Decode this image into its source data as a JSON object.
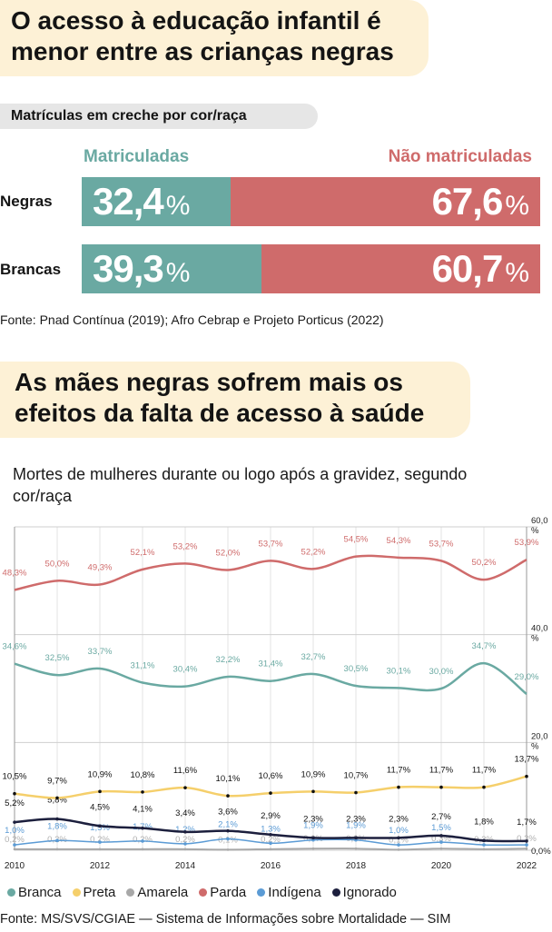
{
  "section1": {
    "headline": "O acesso à educação infantil é menor entre as crianças negras",
    "subtitle": "Matrículas em creche por cor/raça",
    "col_enrolled": "Matriculadas",
    "col_not_enrolled": "Não matriculadas",
    "pct_sign": "%",
    "rows": [
      {
        "label": "Negras",
        "enrolled": "32,4",
        "not_enrolled": "67,6",
        "enrolled_value": 32.4
      },
      {
        "label": "Brancas",
        "enrolled": "39,3",
        "not_enrolled": "60,7",
        "enrolled_value": 39.3
      }
    ],
    "source": "Fonte: Pnad Contínua (2019); Afro Cebrap e Projeto Porticus (2022)"
  },
  "section2": {
    "headline": "As mães negras sofrem mais os efeitos da falta de acesso à saúde",
    "source": "Fonte: MS/SVS/CGIAE — Sistema de Informações sobre Mortalidade — SIM"
  },
  "colors": {
    "teal": "#6aa9a2",
    "red": "#cf6b6b",
    "yellow": "#f5cf6b",
    "gray": "#a8a8a8",
    "blue": "#5b9bd5",
    "navy": "#1c1f3d"
  },
  "chart_data": {
    "type": "line",
    "title": "Mortes de mulheres durante ou logo após a gravidez, segundo cor/raça",
    "x": [
      2010,
      2011,
      2012,
      2013,
      2014,
      2015,
      2016,
      2017,
      2018,
      2019,
      2020,
      2021,
      2022
    ],
    "x_ticks": [
      "2010",
      "2012",
      "2014",
      "2016",
      "2018",
      "2020",
      "2022"
    ],
    "y_ticks": [
      {
        "value": 60,
        "label": "60,0 %"
      },
      {
        "value": 40,
        "label": "40,0 %"
      },
      {
        "value": 20,
        "label": "20,0 %"
      },
      {
        "value": 0,
        "label": "0,0%"
      }
    ],
    "ylim": [
      0,
      60
    ],
    "series": [
      {
        "name": "Parda",
        "color": "#cf6b6b",
        "values": [
          48.3,
          50.0,
          49.3,
          52.1,
          53.2,
          52.0,
          53.7,
          52.2,
          54.5,
          54.3,
          53.7,
          50.2,
          53.9
        ],
        "labels": [
          "48,3%",
          "50,0%",
          "49,3%",
          "52,1%",
          "53,2%",
          "52,0%",
          "53,7%",
          "52,2%",
          "54,5%",
          "54,3%",
          "53,7%",
          "50,2%",
          "53,9%"
        ]
      },
      {
        "name": "Branca",
        "color": "#6aa9a2",
        "values": [
          34.6,
          32.5,
          33.7,
          31.1,
          30.4,
          32.2,
          31.4,
          32.7,
          30.5,
          30.1,
          30.0,
          34.7,
          29.0
        ],
        "labels": [
          "34,6%",
          "32,5%",
          "33,7%",
          "31,1%",
          "30,4%",
          "32,2%",
          "31,4%",
          "32,7%",
          "30,5%",
          "30,1%",
          "30,0%",
          "34,7%",
          "29,0%"
        ]
      },
      {
        "name": "Preta",
        "color": "#f5cf6b",
        "values": [
          10.5,
          9.7,
          10.9,
          10.8,
          11.6,
          10.1,
          10.6,
          10.9,
          10.7,
          11.7,
          11.7,
          11.7,
          13.7
        ],
        "labels": [
          "10,5%",
          "9,7%",
          "10,9%",
          "10,8%",
          "11,6%",
          "10,1%",
          "10,6%",
          "10,9%",
          "10,7%",
          "11,7%",
          "11,7%",
          "11,7%",
          "13,7%"
        ]
      },
      {
        "name": "Ignorado",
        "color": "#1c1f3d",
        "values": [
          5.2,
          5.8,
          4.5,
          4.1,
          3.4,
          3.6,
          2.9,
          2.3,
          2.3,
          2.3,
          2.7,
          1.8,
          1.7
        ],
        "labels": [
          "5,2%",
          "5,8%",
          "4,5%",
          "4,1%",
          "3,4%",
          "3,6%",
          "2,9%",
          "2,3%",
          "2,3%",
          "2,3%",
          "2,7%",
          "1,8%",
          "1,7%"
        ]
      },
      {
        "name": "Indígena",
        "color": "#5b9bd5",
        "values": [
          1.0,
          1.8,
          1.5,
          1.7,
          1.2,
          2.1,
          1.3,
          1.9,
          1.9,
          1.0,
          1.5,
          1.0,
          1.0
        ],
        "labels": [
          "1,0%",
          "1,8%",
          "1,5%",
          "1,7%",
          "1,2%",
          "2,1%",
          "1,3%",
          "1,9%",
          "1,9%",
          "1,0%",
          "1,5%",
          "",
          ""
        ]
      },
      {
        "name": "Amarela",
        "color": "#a8a8a8",
        "values": [
          0.2,
          0.2,
          0.2,
          0.2,
          0.2,
          0.1,
          0.2,
          0.3,
          0.3,
          0.1,
          0.3,
          0.2,
          0.3
        ],
        "labels": [
          "0,2%",
          "0,2%",
          "0,2%",
          "0,2%",
          "0,2%",
          "0,1%",
          "0,2%",
          "0,3%",
          "0,3%",
          "0,1%",
          "0,3%",
          "0,2%",
          "0,3%"
        ]
      }
    ],
    "legend": [
      {
        "name": "Branca",
        "color": "#6aa9a2"
      },
      {
        "name": "Preta",
        "color": "#f5cf6b"
      },
      {
        "name": "Amarela",
        "color": "#a8a8a8"
      },
      {
        "name": "Parda",
        "color": "#cf6b6b"
      },
      {
        "name": "Indígena",
        "color": "#5b9bd5"
      },
      {
        "name": "Ignorado",
        "color": "#1c1f3d"
      }
    ]
  }
}
